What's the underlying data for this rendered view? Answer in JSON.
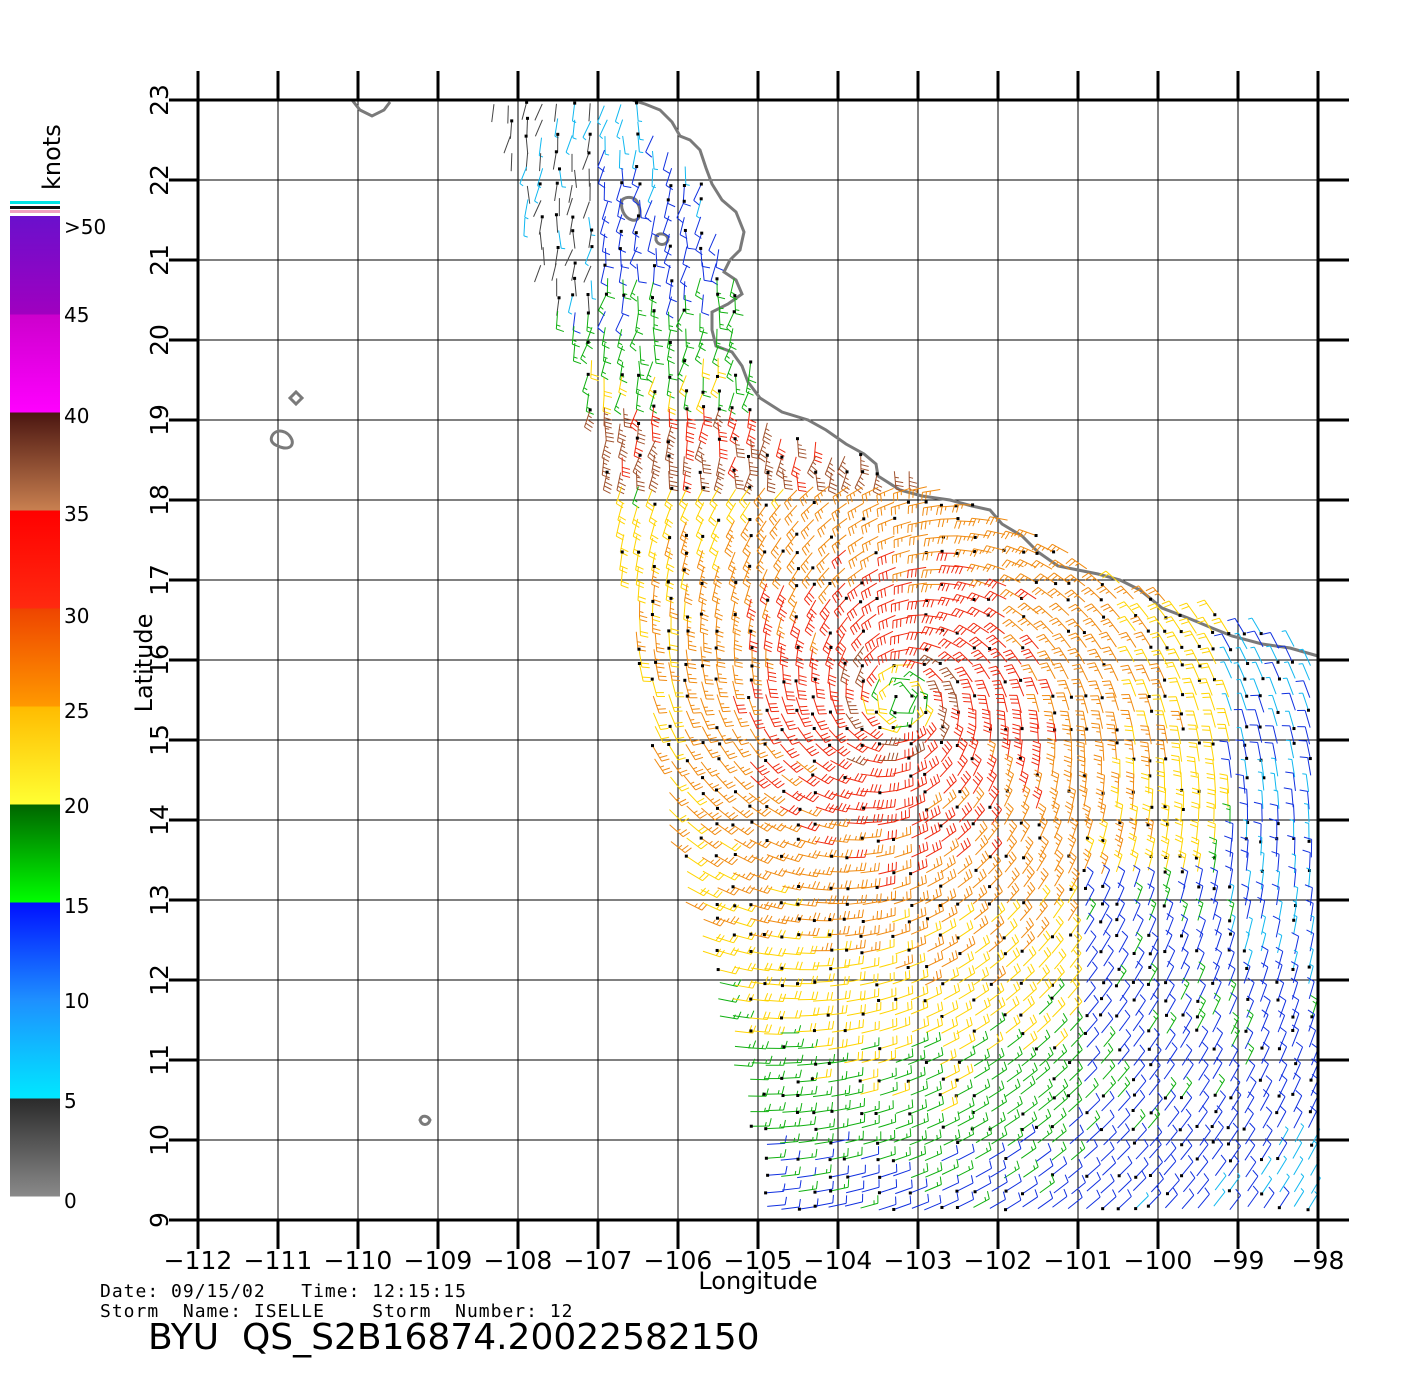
{
  "map": {
    "x_axis": {
      "label": "Longitude",
      "ticks": [
        "−112",
        "−111",
        "−110",
        "−109",
        "−108",
        "−107",
        "−106",
        "−105",
        "−104",
        "−103",
        "−102",
        "−101",
        "−100",
        "−99",
        "−98"
      ]
    },
    "y_axis": {
      "label": "Latitude",
      "ticks": [
        "9",
        "10",
        "11",
        "12",
        "13",
        "14",
        "15",
        "16",
        "17",
        "18",
        "19",
        "20",
        "21",
        "22",
        "23"
      ]
    },
    "extent": {
      "lon_min": -112,
      "lon_max": -98,
      "lat_min": 9,
      "lat_max": 23
    },
    "grid": true
  },
  "colorbar": {
    "unit_label": "knots",
    "tick_labels": [
      "0",
      "5",
      "10",
      "15",
      "20",
      "25",
      "30",
      "35",
      "40",
      "45",
      ">50"
    ],
    "segments": [
      {
        "range": "0-5",
        "top": "#2a2a2a",
        "bottom": "#8a8a8a"
      },
      {
        "range": "5-10",
        "top": "#1e90ff",
        "bottom": "#00e8ff"
      },
      {
        "range": "10-15",
        "top": "#0010ff",
        "bottom": "#1e90ff"
      },
      {
        "range": "15-20",
        "top": "#006400",
        "bottom": "#00ff00"
      },
      {
        "range": "20-25",
        "top": "#ffbb00",
        "bottom": "#ffff33"
      },
      {
        "range": "25-30",
        "top": "#ee4400",
        "bottom": "#ff9900"
      },
      {
        "range": "30-35",
        "top": "#ff0000",
        "bottom": "#ff2a10"
      },
      {
        "range": "35-40",
        "top": "#4a1510",
        "bottom": "#c98050"
      },
      {
        "range": "40-45",
        "top": "#cc00cc",
        "bottom": "#ff00ff"
      },
      {
        "range": "45-50",
        "top": "#6a10cc",
        "bottom": "#a000c0"
      }
    ]
  },
  "footer": {
    "date_line": "Date: 09/15/02   Time: 12:15:15",
    "storm_line": "Storm  Name: ISELLE    Storm  Number: 12",
    "title": "BYU  QS_S2B16874.20022582150"
  },
  "colors": {
    "coast": "#7a7a7a",
    "grid": "#000000"
  }
}
